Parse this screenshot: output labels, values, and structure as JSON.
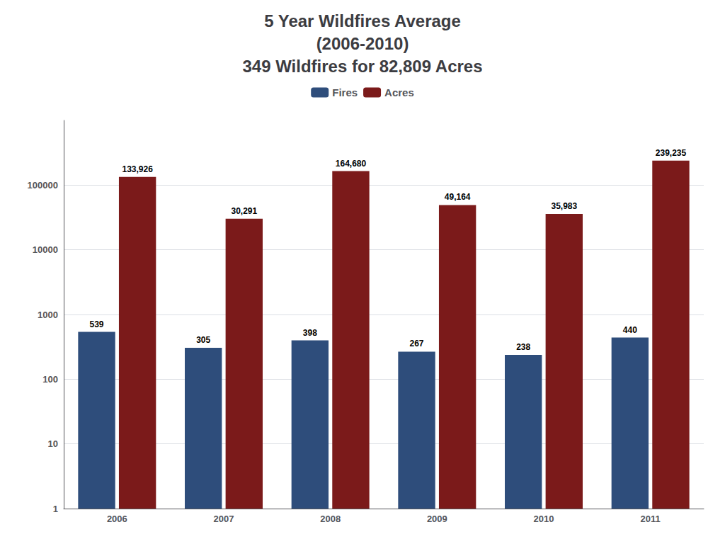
{
  "chart_data": {
    "type": "bar",
    "title": "5 Year Wildfires Average\n(2006-2010)\n349 Wildfires for 82,809 Acres",
    "categories": [
      "2006",
      "2007",
      "2008",
      "2009",
      "2010",
      "2011"
    ],
    "series": [
      {
        "name": "Fires",
        "color": "#2e4d7b",
        "values": [
          539,
          305,
          398,
          267,
          238,
          440
        ]
      },
      {
        "name": "Acres",
        "color": "#7b1a1a",
        "values": [
          133926,
          30291,
          164680,
          49164,
          35983,
          239235
        ],
        "value_labels": [
          "133,926",
          "30,291",
          "164,680",
          "49,164",
          "35,983",
          "239,235"
        ]
      }
    ],
    "log": "y",
    "ylim": [
      1,
      1000000
    ],
    "yticks": [
      1,
      10,
      100,
      1000,
      10000,
      100000
    ],
    "grid": true,
    "legend": "top",
    "data_labels": true
  }
}
